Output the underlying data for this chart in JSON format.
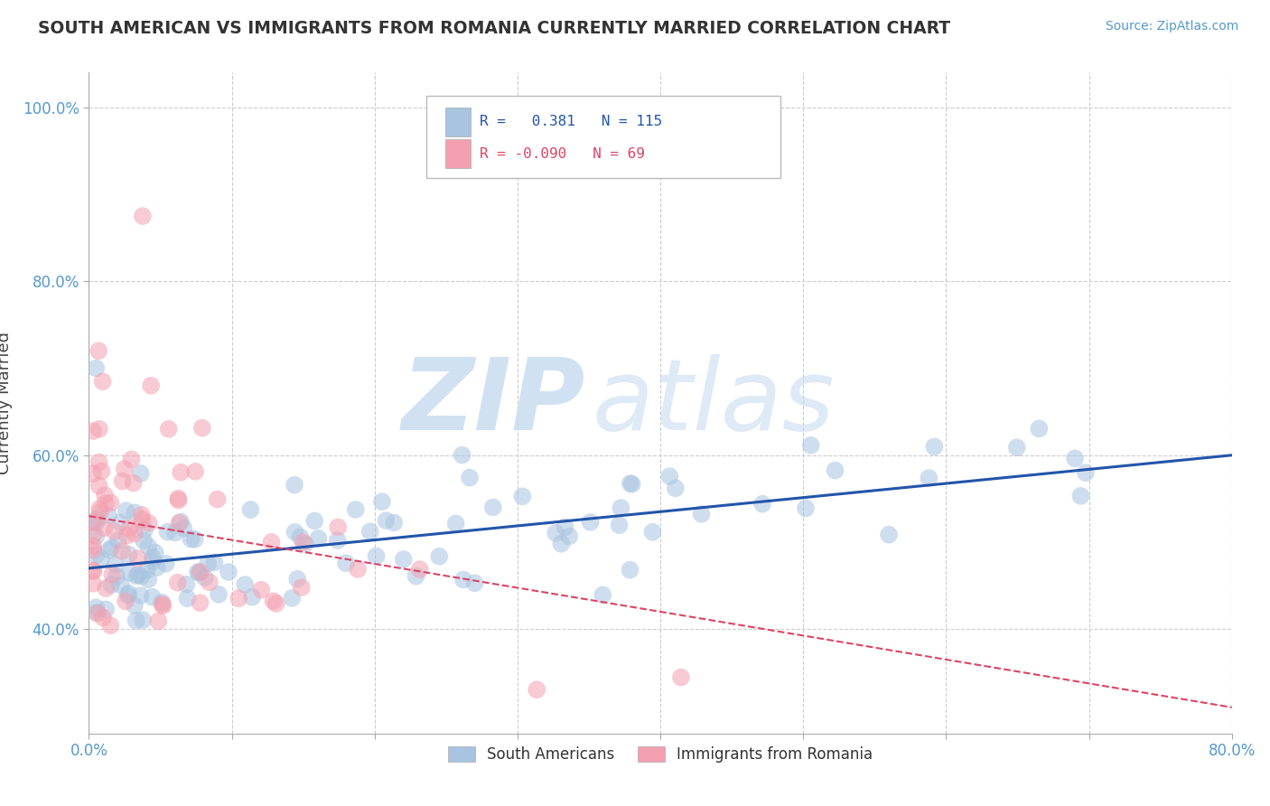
{
  "title": "SOUTH AMERICAN VS IMMIGRANTS FROM ROMANIA CURRENTLY MARRIED CORRELATION CHART",
  "source": "Source: ZipAtlas.com",
  "ylabel": "Currently Married",
  "xlim": [
    0.0,
    0.8
  ],
  "ylim": [
    0.28,
    1.04
  ],
  "xticks": [
    0.0,
    0.1,
    0.2,
    0.3,
    0.4,
    0.5,
    0.6,
    0.7,
    0.8
  ],
  "xticklabels": [
    "0.0%",
    "",
    "",
    "",
    "",
    "",
    "",
    "",
    "80.0%"
  ],
  "yticks": [
    0.4,
    0.6,
    0.8,
    1.0
  ],
  "yticklabels": [
    "40.0%",
    "60.0%",
    "80.0%",
    "100.0%"
  ],
  "blue_R": 0.381,
  "blue_N": 115,
  "pink_R": -0.09,
  "pink_N": 69,
  "blue_color": "#A8C4E0",
  "pink_color": "#F4A0B0",
  "blue_line_color": "#2255AA",
  "pink_line_color": "#DD4466",
  "background_color": "#FFFFFF",
  "grid_color": "#CCCCCC",
  "watermark_text_1": "ZIP",
  "watermark_text_2": "atlas",
  "legend_label_blue": "South Americans",
  "legend_label_pink": "Immigrants from Romania",
  "blue_line_x0": 0.0,
  "blue_line_y0": 0.47,
  "blue_line_x1": 0.8,
  "blue_line_y1": 0.6,
  "pink_line_x0": 0.0,
  "pink_line_y0": 0.53,
  "pink_line_x1": 0.8,
  "pink_line_y1": 0.31
}
